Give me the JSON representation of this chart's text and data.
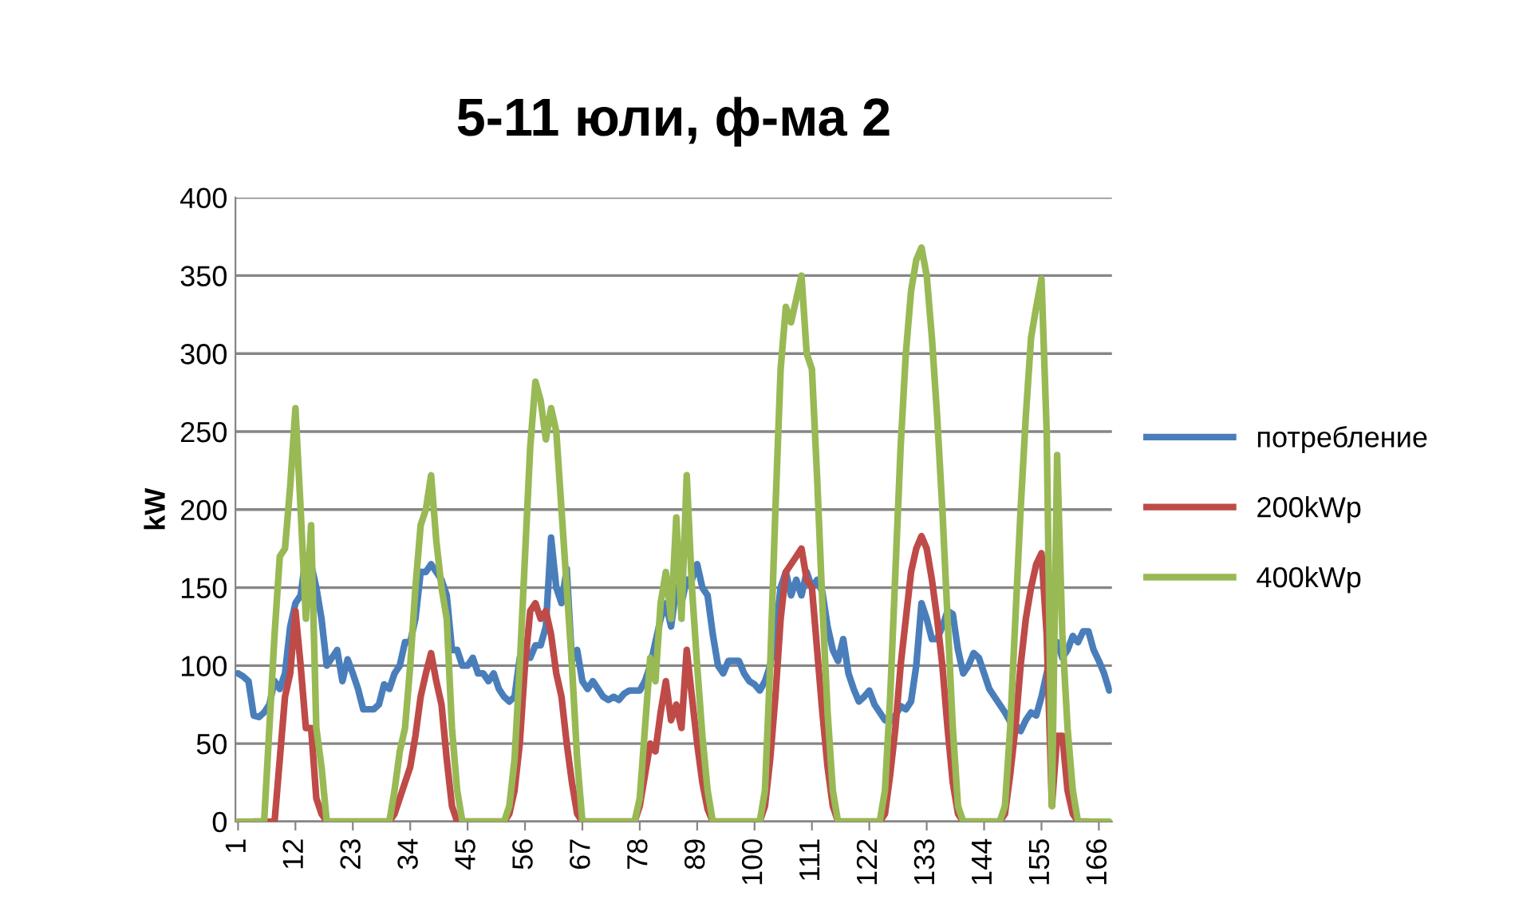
{
  "chart_data": {
    "type": "line",
    "title": "5-11 юли, ф-ма 2",
    "ylabel": "kW",
    "categories": [
      "1",
      null,
      null,
      null,
      null,
      null,
      null,
      null,
      null,
      null,
      null,
      "12",
      null,
      null,
      null,
      null,
      null,
      null,
      null,
      null,
      null,
      null,
      "23",
      null,
      null,
      null,
      null,
      null,
      null,
      null,
      null,
      null,
      null,
      "34",
      null,
      null,
      null,
      null,
      null,
      null,
      null,
      null,
      null,
      null,
      "45",
      null,
      null,
      null,
      null,
      null,
      null,
      null,
      null,
      null,
      null,
      "56",
      null,
      null,
      null,
      null,
      null,
      null,
      null,
      null,
      null,
      null,
      "67",
      null,
      null,
      null,
      null,
      null,
      null,
      null,
      null,
      null,
      null,
      "78",
      null,
      null,
      null,
      null,
      null,
      null,
      null,
      null,
      null,
      null,
      "89",
      null,
      null,
      null,
      null,
      null,
      null,
      null,
      null,
      null,
      null,
      "100",
      null,
      null,
      null,
      null,
      null,
      null,
      null,
      null,
      null,
      null,
      "111",
      null,
      null,
      null,
      null,
      null,
      null,
      null,
      null,
      null,
      null,
      "122",
      null,
      null,
      null,
      null,
      null,
      null,
      null,
      null,
      null,
      null,
      "133",
      null,
      null,
      null,
      null,
      null,
      null,
      null,
      null,
      null,
      null,
      "144",
      null,
      null,
      null,
      null,
      null,
      null,
      null,
      null,
      null,
      null,
      "155",
      null,
      null,
      null,
      null,
      null,
      null,
      null,
      null,
      null,
      null,
      "166",
      null,
      null
    ],
    "ylim": [
      0,
      400
    ],
    "yticks": [
      0,
      50,
      100,
      150,
      200,
      250,
      300,
      350,
      400
    ],
    "grid": "y",
    "legend": "right",
    "marker": "none",
    "line_style": "solid",
    "series": [
      {
        "name": "потребление",
        "color": "#4a7ebb",
        "values": [
          95,
          93,
          90,
          68,
          67,
          70,
          75,
          90,
          85,
          95,
          125,
          140,
          145,
          170,
          165,
          150,
          130,
          100,
          105,
          110,
          90,
          104,
          95,
          85,
          72,
          72,
          72,
          75,
          88,
          85,
          95,
          100,
          115,
          115,
          130,
          160,
          160,
          165,
          160,
          155,
          145,
          110,
          110,
          100,
          100,
          105,
          95,
          95,
          90,
          95,
          85,
          80,
          77,
          80,
          105,
          110,
          105,
          113,
          113,
          125,
          182,
          150,
          140,
          162,
          103,
          110,
          90,
          85,
          90,
          85,
          80,
          78,
          80,
          78,
          82,
          84,
          84,
          84,
          90,
          100,
          115,
          130,
          140,
          125,
          150,
          140,
          155,
          155,
          165,
          150,
          145,
          120,
          100,
          95,
          103,
          103,
          103,
          95,
          90,
          88,
          84,
          90,
          100,
          120,
          150,
          160,
          145,
          155,
          145,
          160,
          150,
          155,
          147,
          125,
          110,
          103,
          117,
          95,
          85,
          77,
          80,
          84,
          75,
          70,
          65,
          64,
          68,
          74,
          72,
          77,
          100,
          140,
          130,
          117,
          117,
          125,
          135,
          133,
          110,
          95,
          100,
          108,
          105,
          95,
          85,
          80,
          75,
          70,
          64,
          62,
          58,
          65,
          70,
          68,
          80,
          95,
          110,
          115,
          105,
          110,
          119,
          115,
          122,
          122,
          110,
          103,
          95,
          84
        ]
      },
      {
        "name": "200kWp",
        "color": "#be4b48",
        "values": [
          null,
          null,
          null,
          0,
          0,
          0,
          0,
          0,
          40,
          80,
          95,
          135,
          100,
          60,
          60,
          15,
          5,
          0,
          0,
          0,
          0,
          0,
          0,
          0,
          0,
          0,
          0,
          0,
          0,
          0,
          5,
          15,
          25,
          35,
          55,
          80,
          95,
          108,
          90,
          75,
          40,
          10,
          0,
          0,
          0,
          0,
          0,
          0,
          0,
          0,
          0,
          0,
          5,
          20,
          50,
          100,
          135,
          140,
          130,
          135,
          120,
          95,
          80,
          50,
          25,
          5,
          0,
          0,
          0,
          0,
          0,
          0,
          0,
          0,
          0,
          0,
          0,
          10,
          30,
          50,
          45,
          70,
          90,
          65,
          75,
          60,
          110,
          80,
          50,
          25,
          8,
          0,
          0,
          0,
          0,
          0,
          0,
          0,
          0,
          0,
          0,
          10,
          40,
          80,
          130,
          160,
          165,
          170,
          175,
          155,
          150,
          110,
          70,
          35,
          10,
          0,
          0,
          0,
          0,
          0,
          0,
          0,
          0,
          0,
          5,
          30,
          60,
          100,
          130,
          160,
          175,
          183,
          175,
          155,
          130,
          100,
          60,
          25,
          5,
          0,
          0,
          0,
          0,
          0,
          0,
          0,
          0,
          5,
          30,
          60,
          100,
          130,
          150,
          165,
          172,
          120,
          10,
          55,
          55,
          20,
          5,
          0,
          0,
          0,
          null,
          null,
          null,
          null
        ]
      },
      {
        "name": "400kWp",
        "color": "#98b954",
        "values": [
          0,
          0,
          0,
          0,
          0,
          0,
          60,
          120,
          170,
          175,
          215,
          265,
          200,
          130,
          190,
          60,
          35,
          0,
          0,
          0,
          0,
          0,
          0,
          0,
          0,
          0,
          0,
          0,
          0,
          0,
          20,
          45,
          60,
          100,
          150,
          190,
          200,
          222,
          180,
          150,
          130,
          60,
          20,
          0,
          0,
          0,
          0,
          0,
          0,
          0,
          0,
          0,
          10,
          40,
          100,
          170,
          240,
          282,
          270,
          245,
          265,
          250,
          200,
          150,
          100,
          40,
          0,
          0,
          0,
          0,
          0,
          0,
          0,
          0,
          0,
          0,
          0,
          15,
          60,
          105,
          90,
          140,
          160,
          130,
          195,
          130,
          222,
          150,
          100,
          55,
          20,
          0,
          0,
          0,
          0,
          0,
          0,
          0,
          0,
          0,
          0,
          20,
          100,
          200,
          290,
          330,
          320,
          335,
          350,
          300,
          290,
          220,
          140,
          70,
          20,
          0,
          0,
          0,
          0,
          0,
          0,
          0,
          0,
          0,
          20,
          80,
          160,
          240,
          300,
          340,
          360,
          368,
          350,
          310,
          260,
          200,
          130,
          60,
          10,
          0,
          0,
          0,
          0,
          0,
          0,
          0,
          0,
          10,
          60,
          130,
          200,
          260,
          310,
          330,
          348,
          250,
          10,
          235,
          120,
          60,
          20,
          0,
          0,
          0,
          0,
          0,
          0,
          0
        ]
      }
    ]
  }
}
